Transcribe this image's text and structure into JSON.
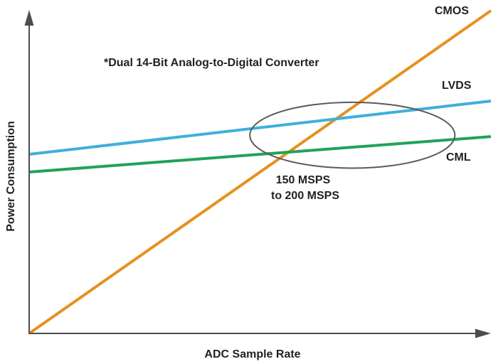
{
  "chart_data": {
    "type": "line",
    "title": "",
    "note": "*Dual 14-Bit Analog-to-Digital Converter",
    "xlabel": "ADC Sample Rate",
    "ylabel": "Power Consumption",
    "xlim": [
      0,
      1
    ],
    "ylim": [
      0,
      1
    ],
    "grid": false,
    "axis_color": "#4d4d4f",
    "series": [
      {
        "name": "CMOS",
        "color": "#e6911f",
        "x": [
          0,
          1
        ],
        "y": [
          0.0,
          1.0
        ]
      },
      {
        "name": "LVDS",
        "color": "#3fb0dc",
        "x": [
          0,
          1
        ],
        "y": [
          0.555,
          0.72
        ]
      },
      {
        "name": "CML",
        "color": "#1fa35a",
        "x": [
          0,
          1
        ],
        "y": [
          0.5,
          0.61
        ]
      }
    ],
    "annotation": {
      "lines": [
        "150 MSPS",
        "to 200 MSPS"
      ],
      "center": [
        0.7,
        0.614
      ],
      "radius": [
        0.222,
        0.102
      ],
      "color": "#5a5a5c"
    }
  }
}
